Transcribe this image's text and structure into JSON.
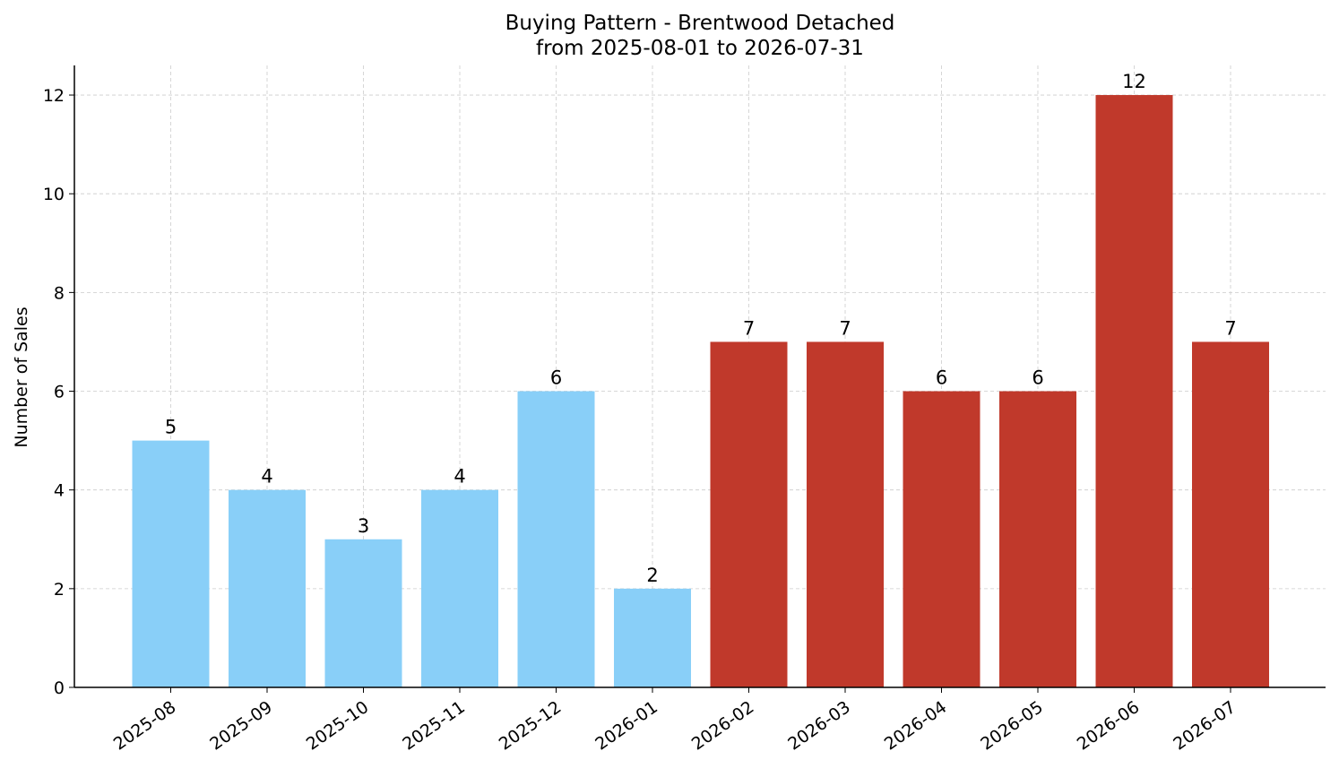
{
  "chart_data": {
    "type": "bar",
    "title": "Buying Pattern - Brentwood Detached",
    "subtitle": "from 2025-08-01 to 2026-07-31",
    "xlabel": "",
    "ylabel": "Number of Sales",
    "categories": [
      "2025-08",
      "2025-09",
      "2025-10",
      "2025-11",
      "2025-12",
      "2026-01",
      "2026-02",
      "2026-03",
      "2026-04",
      "2026-05",
      "2026-06",
      "2026-07"
    ],
    "values": [
      5,
      4,
      3,
      4,
      6,
      2,
      7,
      7,
      6,
      6,
      12,
      7
    ],
    "bar_colors": [
      "#89CFF8",
      "#89CFF8",
      "#89CFF8",
      "#89CFF8",
      "#89CFF8",
      "#89CFF8",
      "#C0392B",
      "#C0392B",
      "#C0392B",
      "#C0392B",
      "#C0392B",
      "#C0392B"
    ],
    "ylim": [
      0,
      12.6
    ],
    "yticks": [
      0,
      2,
      4,
      6,
      8,
      10,
      12
    ],
    "data_labels": true,
    "grid": true,
    "legend": "none"
  }
}
